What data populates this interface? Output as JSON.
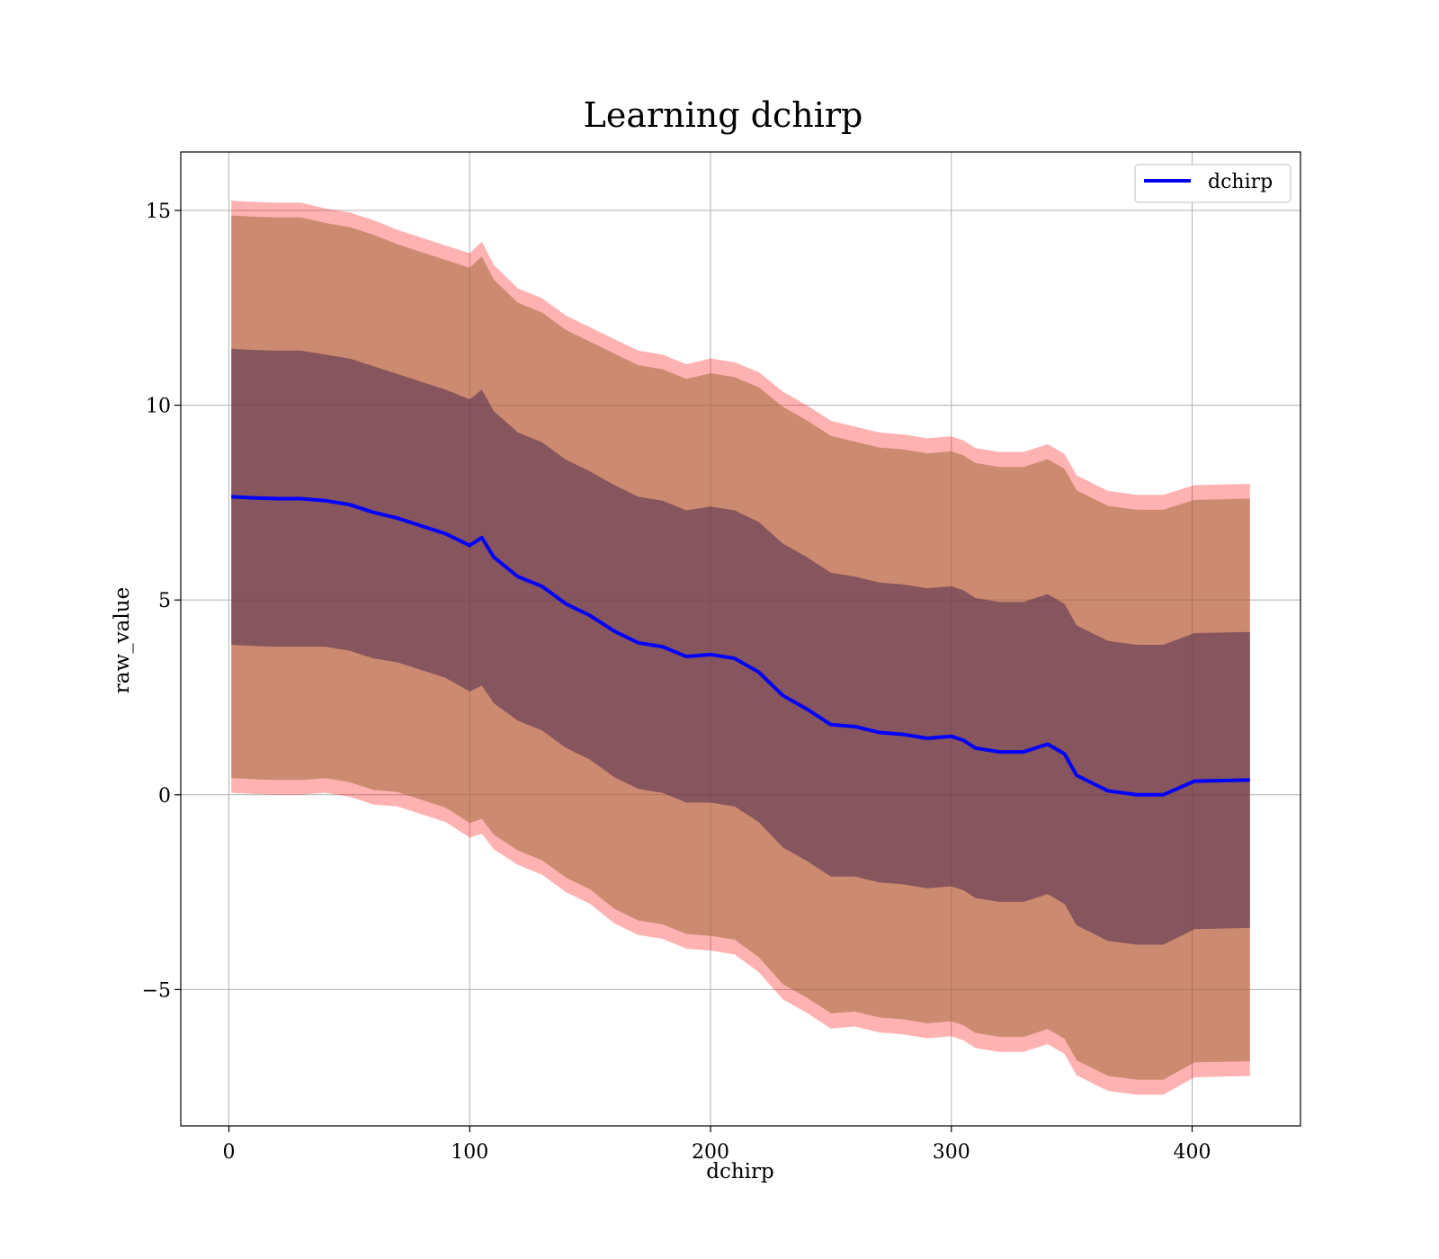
{
  "chart_data": {
    "type": "line",
    "title": "Learning dchirp",
    "xlabel": "dchirp",
    "ylabel": "raw_value",
    "xlim": [
      -20,
      445
    ],
    "ylim": [
      -8.5,
      16.5
    ],
    "xticks": [
      0,
      100,
      200,
      300,
      400
    ],
    "yticks": [
      -5,
      0,
      5,
      10,
      15
    ],
    "xtick_labels": [
      "0",
      "100",
      "200",
      "300",
      "400"
    ],
    "ytick_labels": [
      "−5",
      "0",
      "5",
      "10",
      "15"
    ],
    "grid": true,
    "legend": {
      "placement": "top-right",
      "entries": [
        "dchirp"
      ]
    },
    "colors": {
      "mean_line": "#0000ff",
      "outer_band": "#ff0000",
      "inner_band": "#4f2a4f",
      "legend_border": "#cccccc"
    },
    "series": [
      {
        "name": "dchirp",
        "x": [
          1,
          10,
          20,
          30,
          40,
          50,
          60,
          70,
          80,
          90,
          100,
          105,
          110,
          120,
          130,
          140,
          150,
          160,
          170,
          180,
          190,
          200,
          210,
          220,
          230,
          240,
          250,
          260,
          270,
          280,
          290,
          300,
          305,
          310,
          320,
          330,
          340,
          347,
          352,
          365,
          377,
          388,
          401,
          424
        ],
        "mean": [
          7.65,
          7.62,
          7.6,
          7.6,
          7.55,
          7.45,
          7.25,
          7.1,
          6.9,
          6.7,
          6.4,
          6.6,
          6.1,
          5.6,
          5.35,
          4.9,
          4.6,
          4.2,
          3.9,
          3.8,
          3.55,
          3.6,
          3.5,
          3.15,
          2.55,
          2.2,
          1.8,
          1.75,
          1.6,
          1.55,
          1.45,
          1.5,
          1.4,
          1.2,
          1.1,
          1.1,
          1.3,
          1.05,
          0.5,
          0.1,
          0.0,
          0.0,
          0.35,
          0.38
        ],
        "std": [
          3.8,
          3.8,
          3.8,
          3.8,
          3.75,
          3.75,
          3.75,
          3.7,
          3.7,
          3.7,
          3.75,
          3.8,
          3.75,
          3.7,
          3.7,
          3.7,
          3.7,
          3.75,
          3.75,
          3.75,
          3.75,
          3.8,
          3.8,
          3.85,
          3.9,
          3.9,
          3.9,
          3.85,
          3.85,
          3.85,
          3.85,
          3.85,
          3.85,
          3.85,
          3.85,
          3.85,
          3.85,
          3.85,
          3.85,
          3.85,
          3.85,
          3.85,
          3.8,
          3.8
        ]
      }
    ]
  }
}
